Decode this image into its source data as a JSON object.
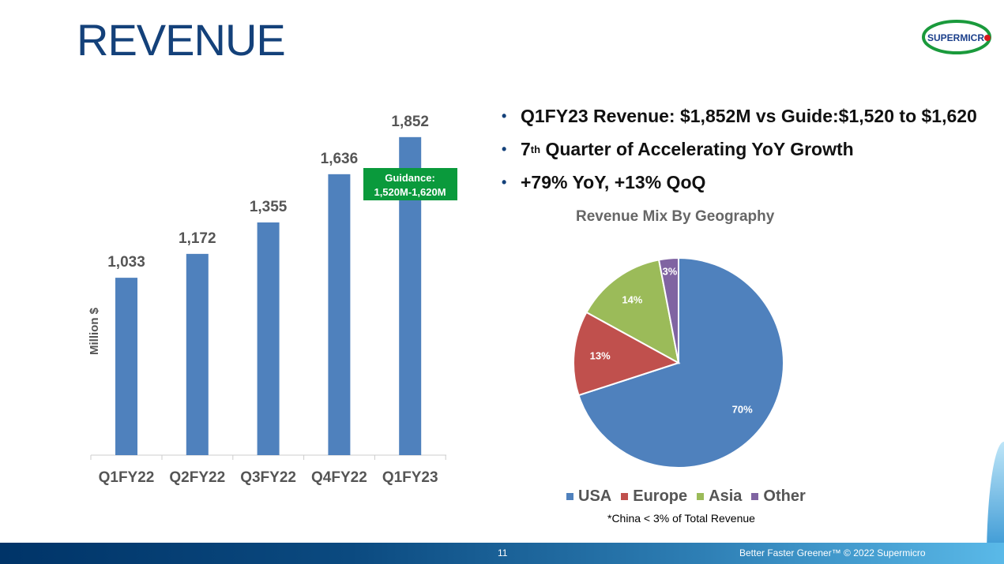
{
  "title": "REVENUE",
  "logo_text": "SUPERMICRO",
  "bullets": [
    "Q1FY23 Revenue: $1,852M vs Guide:$1,520 to $1,620",
    "7",
    "th",
    " Quarter of Accelerating YoY Growth",
    "+79% YoY, +13% QoQ"
  ],
  "guidance": {
    "line1": "Guidance:",
    "line2": "1,520M-1,620M",
    "color": "#0a9a3c"
  },
  "chart_data": [
    {
      "type": "bar",
      "categories": [
        "Q1FY22",
        "Q2FY22",
        "Q3FY22",
        "Q4FY22",
        "Q1FY23"
      ],
      "values": [
        1033,
        1172,
        1355,
        1636,
        1852
      ],
      "labels": [
        "1,033",
        "1,172",
        "1,355",
        "1,636",
        "1,852"
      ],
      "ylabel": "Million $",
      "color": "#4f81bd"
    },
    {
      "type": "pie",
      "title": "Revenue Mix By Geography",
      "slices": [
        {
          "name": "USA",
          "value": 70,
          "label": "70%",
          "color": "#4f81bd"
        },
        {
          "name": "Europe",
          "value": 13,
          "label": "13%",
          "color": "#c0504d"
        },
        {
          "name": "Asia",
          "value": 14,
          "label": "14%",
          "color": "#9bbb59"
        },
        {
          "name": "Other",
          "value": 3,
          "label": "3%",
          "color": "#8064a2"
        }
      ]
    }
  ],
  "note": "*China < 3% of Total Revenue",
  "footer": {
    "page": "11",
    "tagline": "Better Faster Greener™  © 2022 Supermicro"
  }
}
